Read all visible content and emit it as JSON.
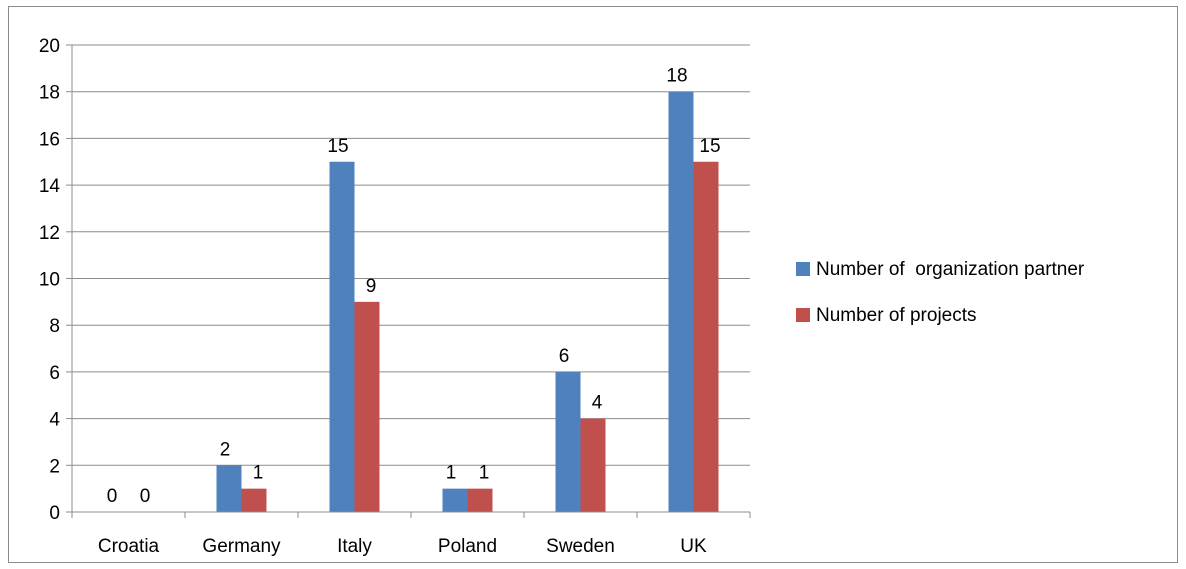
{
  "chart_data": {
    "type": "bar",
    "title": "",
    "xlabel": "",
    "ylabel": "",
    "categories": [
      "Croatia",
      "Germany",
      "Italy",
      "Poland",
      "Sweden",
      "UK"
    ],
    "series": [
      {
        "name": "Number of  organization partner",
        "color": "#4f81bd",
        "values": [
          0,
          2,
          15,
          1,
          6,
          18
        ]
      },
      {
        "name": "Number of projects",
        "color": "#c0504d",
        "values": [
          0,
          1,
          9,
          1,
          4,
          15
        ]
      }
    ],
    "ylim": [
      0,
      20
    ],
    "yticks": [
      "0",
      "2",
      "4",
      "6",
      "8",
      "10",
      "12",
      "14",
      "16",
      "18",
      "20"
    ],
    "grid": true,
    "legend_position": "right",
    "data_labels": true
  }
}
